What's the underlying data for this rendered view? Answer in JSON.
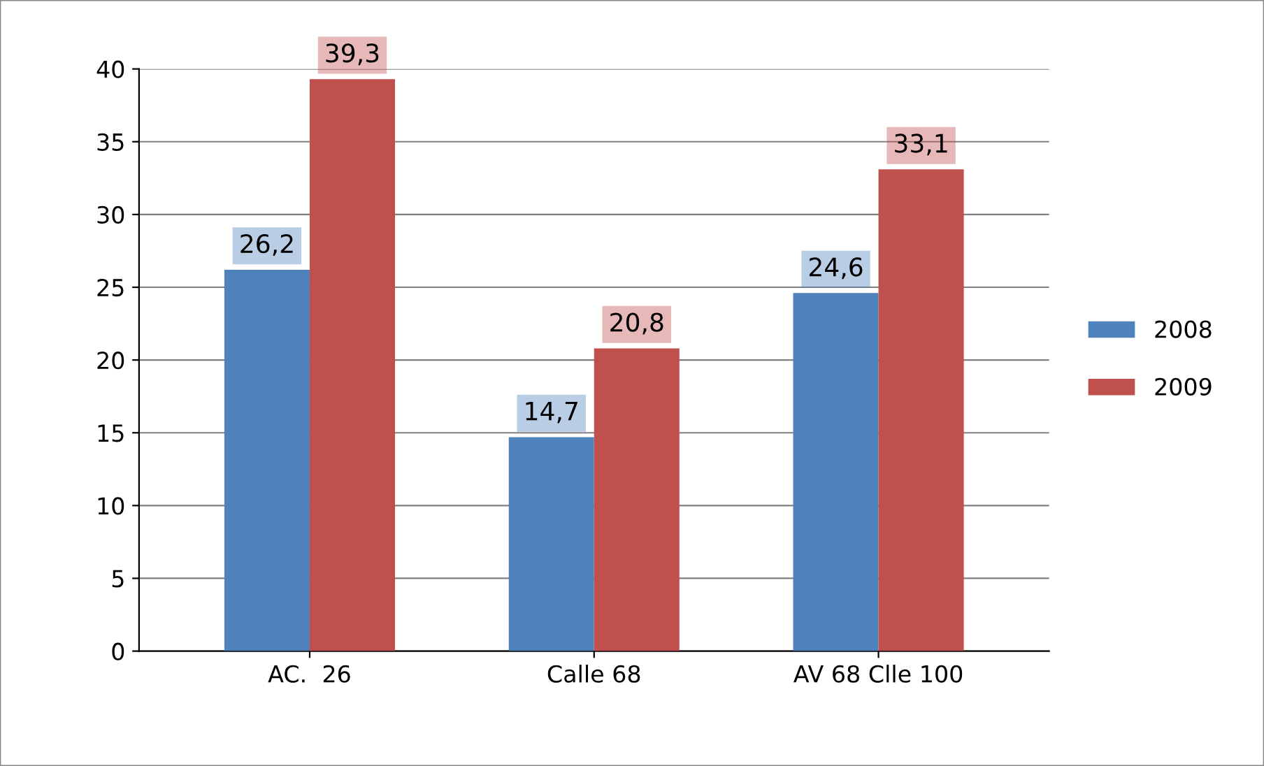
{
  "chart_data": {
    "type": "bar",
    "categories": [
      "AC.  26",
      "Calle 68",
      "AV 68 Clle 100"
    ],
    "series": [
      {
        "name": "2008",
        "color": "#4f81bd",
        "values": [
          26.2,
          14.7,
          24.6
        ],
        "value_labels": [
          "26,2",
          "14,7",
          "24,6"
        ]
      },
      {
        "name": "2009",
        "color": "#c0504d",
        "values": [
          39.3,
          20.8,
          33.1
        ],
        "value_labels": [
          "39,3",
          "20,8",
          "33,1"
        ]
      }
    ],
    "ylim": [
      0,
      40
    ],
    "yticks": [
      0,
      5,
      10,
      15,
      20,
      25,
      30,
      35,
      40
    ],
    "grid": "y",
    "legend": "right"
  }
}
